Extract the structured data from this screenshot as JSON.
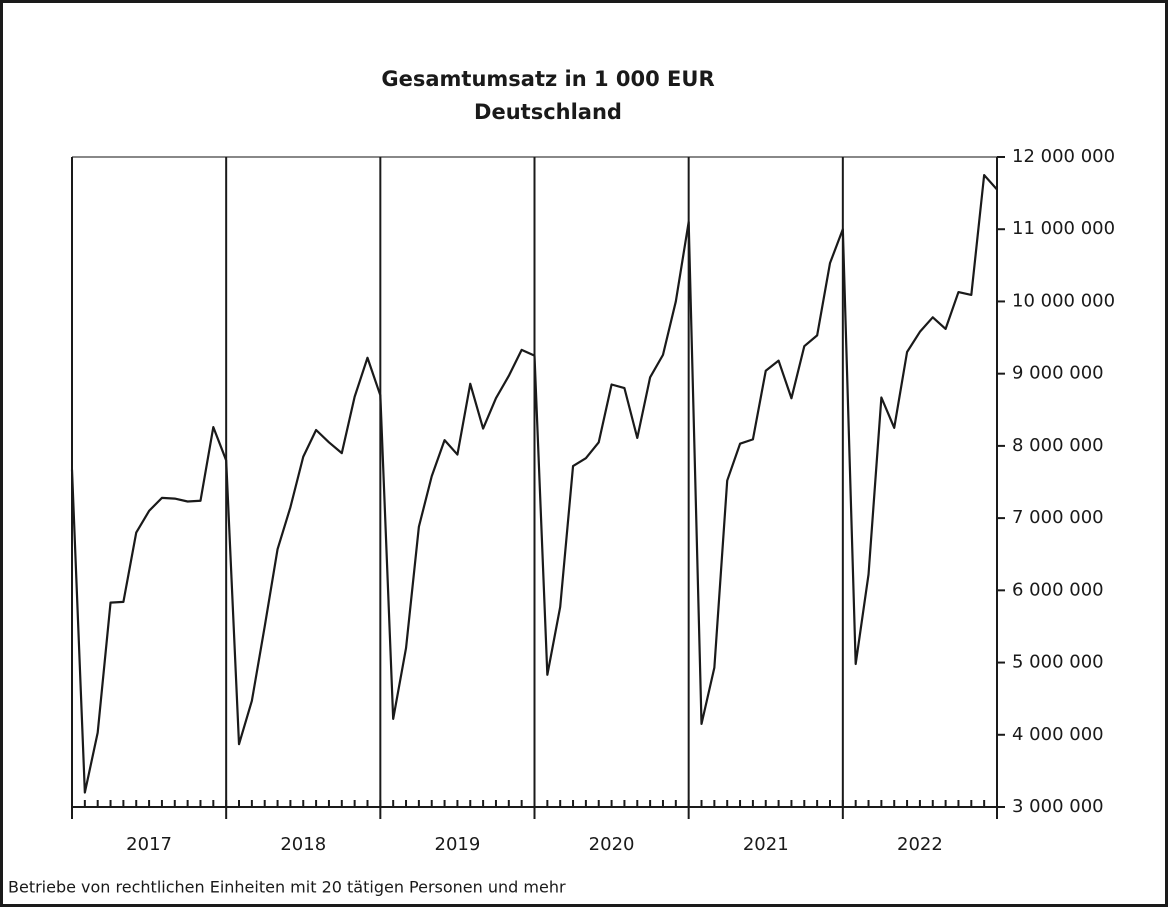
{
  "chart_data": {
    "type": "line",
    "title": "Gesamtumsatz  in  1 000 EUR",
    "subtitle": "Deutschland",
    "footnote": "Betriebe von rechtlichen Einheiten mit 20 tätigen Personen und mehr",
    "categories": [
      null,
      null,
      null,
      null,
      null,
      null,
      null,
      null,
      null,
      null,
      null,
      null,
      null,
      null,
      null,
      null,
      null,
      null,
      null,
      null,
      null,
      null,
      null,
      null,
      null,
      null,
      null,
      null,
      null,
      null,
      null,
      null,
      null,
      null,
      null,
      null,
      null,
      null,
      null,
      null,
      null,
      null,
      null,
      null,
      null,
      null,
      null,
      null,
      null,
      null,
      null,
      null,
      null,
      null,
      null,
      null,
      null,
      null,
      null,
      null,
      null,
      null,
      null,
      null,
      null,
      null,
      null,
      null,
      null,
      null,
      null,
      null,
      null
    ],
    "groups": [
      "2017",
      "2018",
      "2019",
      "2020",
      "2021",
      "2022"
    ],
    "series": [
      {
        "name": null,
        "color": "#1a1a1a",
        "values": [
          7670000,
          3200000,
          4030000,
          5830000,
          5840000,
          6800000,
          7100000,
          7280000,
          7270000,
          7230000,
          7240000,
          8260000,
          7800000,
          3870000,
          4470000,
          5500000,
          6570000,
          7150000,
          7850000,
          8220000,
          8050000,
          7900000,
          8680000,
          9220000,
          8700000,
          4220000,
          5200000,
          6880000,
          7580000,
          8080000,
          7880000,
          8860000,
          8240000,
          8660000,
          8970000,
          9330000,
          9250000,
          4830000,
          5770000,
          7720000,
          7830000,
          8050000,
          8850000,
          8800000,
          8110000,
          8950000,
          9260000,
          10000000,
          11100000,
          4150000,
          4930000,
          7520000,
          8030000,
          8090000,
          9040000,
          9180000,
          8660000,
          9380000,
          9530000,
          10530000,
          11000000,
          4980000,
          6220000,
          8670000,
          8250000,
          9300000,
          9580000,
          9780000,
          9620000,
          10130000,
          10090000,
          11750000,
          11550000
        ]
      }
    ],
    "ylim": [
      3000000,
      12000000
    ],
    "yticks": [
      {
        "value": 3000000,
        "label": "3 000 000"
      },
      {
        "value": 4000000,
        "label": "4 000 000"
      },
      {
        "value": 5000000,
        "label": "5 000 000"
      },
      {
        "value": 6000000,
        "label": "6 000 000"
      },
      {
        "value": 7000000,
        "label": "7 000 000"
      },
      {
        "value": 8000000,
        "label": "8 000 000"
      },
      {
        "value": 9000000,
        "label": "9 000 000"
      },
      {
        "value": 10000000,
        "label": "10 000 000"
      },
      {
        "value": 11000000,
        "label": "11 000 000"
      },
      {
        "value": 12000000,
        "label": "12 000 000"
      }
    ],
    "y_axis_side": "right",
    "grid": false
  }
}
